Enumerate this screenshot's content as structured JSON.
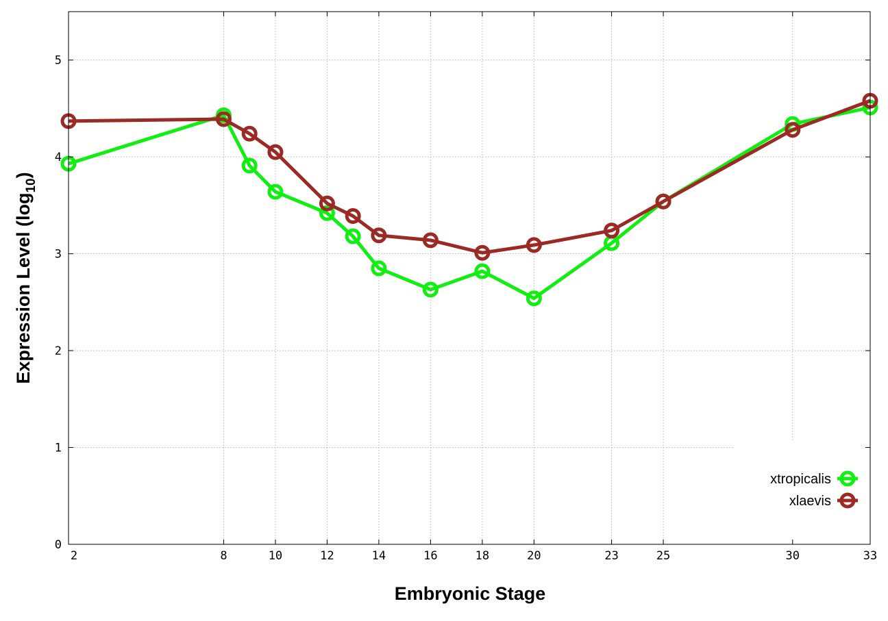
{
  "chart_data": {
    "type": "line",
    "title": "",
    "xlabel": "Embryonic Stage",
    "ylabel_main": "Expression Level (log",
    "ylabel_sub": "10",
    "ylabel_close": ")",
    "xlim": [
      2,
      33
    ],
    "ylim": [
      0,
      5.5
    ],
    "xticks": [
      2,
      8,
      10,
      12,
      14,
      16,
      18,
      20,
      23,
      25,
      30,
      33
    ],
    "yticks": [
      0,
      1,
      2,
      3,
      4,
      5
    ],
    "grid": true,
    "legend_position": "bottom-right",
    "x": [
      2,
      8,
      9,
      10,
      12,
      13,
      14,
      16,
      18,
      20,
      23,
      25,
      30,
      33
    ],
    "series": [
      {
        "name": "xtropicalis",
        "color": "#11ee11",
        "values": [
          3.93,
          4.43,
          3.91,
          3.64,
          3.42,
          3.18,
          2.85,
          2.63,
          2.82,
          2.54,
          3.11,
          3.54,
          4.34,
          4.51
        ]
      },
      {
        "name": "xlaevis",
        "color": "#9b2a25",
        "values": [
          4.37,
          4.39,
          4.24,
          4.05,
          3.52,
          3.39,
          3.19,
          3.14,
          3.01,
          3.09,
          3.24,
          3.54,
          4.28,
          4.58
        ]
      }
    ]
  }
}
